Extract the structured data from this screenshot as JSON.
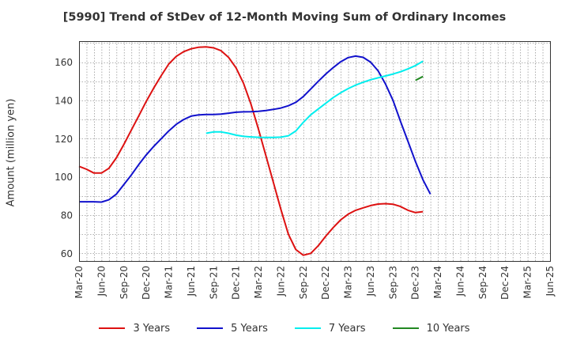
{
  "chart_data": {
    "type": "line",
    "title": "[5990]  Trend of StDev of 12-Month Moving Sum of Ordinary Incomes",
    "xlabel": "",
    "ylabel": "Amount (million yen)",
    "x_ticks": [
      "Mar-20",
      "Jun-20",
      "Sep-20",
      "Dec-20",
      "Mar-21",
      "Jun-21",
      "Sep-21",
      "Dec-21",
      "Mar-22",
      "Jun-22",
      "Sep-22",
      "Dec-22",
      "Mar-23",
      "Jun-23",
      "Sep-23",
      "Dec-23",
      "Mar-24",
      "Jun-24",
      "Sep-24",
      "Dec-24",
      "Mar-25",
      "Jun-25"
    ],
    "y_ticks": [
      60,
      80,
      100,
      120,
      140,
      160
    ],
    "ylim": [
      56,
      171
    ],
    "grid": true,
    "legend_position": "bottom",
    "series": [
      {
        "name": "3 Years",
        "color": "#dd1111",
        "values": [
          [
            0,
            105.5
          ],
          [
            1,
            104
          ],
          [
            2,
            102
          ],
          [
            3,
            102
          ],
          [
            4,
            104.5
          ],
          [
            5,
            110
          ],
          [
            6,
            117
          ],
          [
            7,
            124.5
          ],
          [
            8,
            132
          ],
          [
            9,
            139.5
          ],
          [
            10,
            146.5
          ],
          [
            11,
            153
          ],
          [
            12,
            159
          ],
          [
            13,
            163
          ],
          [
            14,
            165.5
          ],
          [
            15,
            167
          ],
          [
            16,
            167.8
          ],
          [
            17,
            168
          ],
          [
            18,
            167.5
          ],
          [
            19,
            166
          ],
          [
            20,
            162.5
          ],
          [
            21,
            157
          ],
          [
            22,
            149
          ],
          [
            23,
            138
          ],
          [
            24,
            125
          ],
          [
            25,
            111
          ],
          [
            26,
            97
          ],
          [
            27,
            83
          ],
          [
            28,
            70
          ],
          [
            29,
            62
          ],
          [
            30,
            59
          ],
          [
            31,
            60
          ],
          [
            32,
            64
          ],
          [
            33,
            69
          ],
          [
            34,
            73.5
          ],
          [
            35,
            77.5
          ],
          [
            36,
            80.5
          ],
          [
            37,
            82.5
          ],
          [
            38,
            83.8
          ],
          [
            39,
            85
          ],
          [
            40,
            85.8
          ],
          [
            41,
            86
          ],
          [
            42,
            85.7
          ],
          [
            43,
            84.5
          ],
          [
            44,
            82.5
          ],
          [
            45,
            81.3
          ],
          [
            46,
            81.8
          ]
        ]
      },
      {
        "name": "5 Years",
        "color": "#1111cc",
        "values": [
          [
            0,
            87
          ],
          [
            1,
            87
          ],
          [
            2,
            87
          ],
          [
            3,
            86.8
          ],
          [
            4,
            88
          ],
          [
            5,
            91
          ],
          [
            6,
            96
          ],
          [
            7,
            101
          ],
          [
            8,
            106.5
          ],
          [
            9,
            111.5
          ],
          [
            10,
            116
          ],
          [
            11,
            120
          ],
          [
            12,
            124
          ],
          [
            13,
            127.5
          ],
          [
            14,
            130
          ],
          [
            15,
            131.8
          ],
          [
            16,
            132.4
          ],
          [
            17,
            132.6
          ],
          [
            18,
            132.6
          ],
          [
            19,
            132.8
          ],
          [
            20,
            133.3
          ],
          [
            21,
            133.8
          ],
          [
            22,
            134
          ],
          [
            23,
            134.1
          ],
          [
            24,
            134.3
          ],
          [
            25,
            134.7
          ],
          [
            26,
            135.3
          ],
          [
            27,
            136
          ],
          [
            28,
            137.2
          ],
          [
            29,
            139
          ],
          [
            30,
            142
          ],
          [
            31,
            146
          ],
          [
            32,
            150
          ],
          [
            33,
            153.8
          ],
          [
            34,
            157.2
          ],
          [
            35,
            160.2
          ],
          [
            36,
            162.4
          ],
          [
            37,
            163.2
          ],
          [
            38,
            162.5
          ],
          [
            39,
            160
          ],
          [
            40,
            155.5
          ],
          [
            41,
            148.5
          ],
          [
            42,
            140
          ],
          [
            43,
            129
          ],
          [
            44,
            118.5
          ],
          [
            45,
            108
          ],
          [
            46,
            98.5
          ],
          [
            47,
            91
          ]
        ]
      },
      {
        "name": "7 Years",
        "color": "#00eeee",
        "values": [
          [
            17,
            122.8
          ],
          [
            18,
            123.5
          ],
          [
            19,
            123.5
          ],
          [
            20,
            122.8
          ],
          [
            21,
            121.8
          ],
          [
            22,
            121.2
          ],
          [
            23,
            120.9
          ],
          [
            24,
            120.7
          ],
          [
            25,
            120.6
          ],
          [
            26,
            120.6
          ],
          [
            27,
            120.8
          ],
          [
            28,
            121.5
          ],
          [
            29,
            124
          ],
          [
            30,
            128.5
          ],
          [
            31,
            132.5
          ],
          [
            32,
            135.5
          ],
          [
            33,
            138.5
          ],
          [
            34,
            141.5
          ],
          [
            35,
            144
          ],
          [
            36,
            146.2
          ],
          [
            37,
            148
          ],
          [
            38,
            149.5
          ],
          [
            39,
            150.8
          ],
          [
            40,
            151.8
          ],
          [
            41,
            152.8
          ],
          [
            42,
            153.8
          ],
          [
            43,
            155
          ],
          [
            44,
            156.5
          ],
          [
            45,
            158.2
          ],
          [
            46,
            160.5
          ]
        ]
      },
      {
        "name": "10 Years",
        "color": "#228822",
        "values": [
          [
            45,
            150.5
          ],
          [
            46,
            152.5
          ]
        ]
      }
    ]
  }
}
